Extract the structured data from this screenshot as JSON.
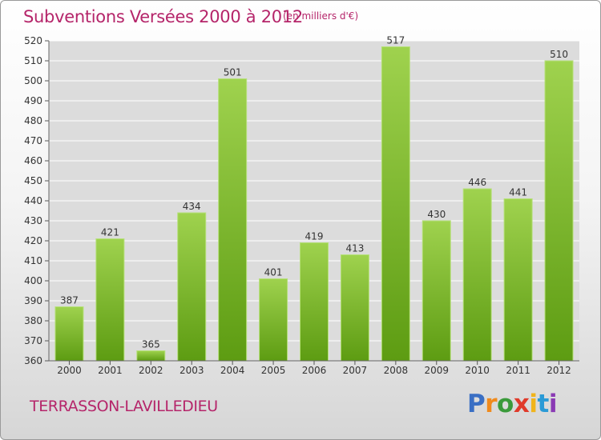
{
  "header": {
    "title": "Subventions Versées 2000 à 2012",
    "subtitle": "(en milliers d'€)"
  },
  "footer": {
    "place": "TERRASSON-LAVILLEDIEU",
    "logo": {
      "letters": [
        "P",
        "r",
        "o",
        "x",
        "i",
        "t",
        "i"
      ],
      "colors": [
        "#3a6fc4",
        "#f08a1c",
        "#3a9a3a",
        "#e03a2a",
        "#f0b41c",
        "#2a9ad6",
        "#8a3ab4"
      ]
    }
  },
  "colors": {
    "accent": "#b5256a",
    "bar_top": "#9fd24e",
    "bar_bottom": "#5d9c12",
    "grid": "#ffffff",
    "plot_bg": "#dcdcdc"
  },
  "chart_data": {
    "type": "bar",
    "title": "Subventions Versées 2000 à 2012",
    "subtitle": "(en milliers d'€)",
    "categories": [
      "2000",
      "2001",
      "2002",
      "2003",
      "2004",
      "2005",
      "2006",
      "2007",
      "2008",
      "2009",
      "2010",
      "2011",
      "2012"
    ],
    "values": [
      387,
      421,
      365,
      434,
      501,
      401,
      419,
      413,
      517,
      430,
      446,
      441,
      510
    ],
    "ylim": [
      360,
      520
    ],
    "yticks": [
      360,
      370,
      380,
      390,
      400,
      410,
      420,
      430,
      440,
      450,
      460,
      470,
      480,
      490,
      500,
      510,
      520
    ],
    "grid": true,
    "data_labels": true
  }
}
